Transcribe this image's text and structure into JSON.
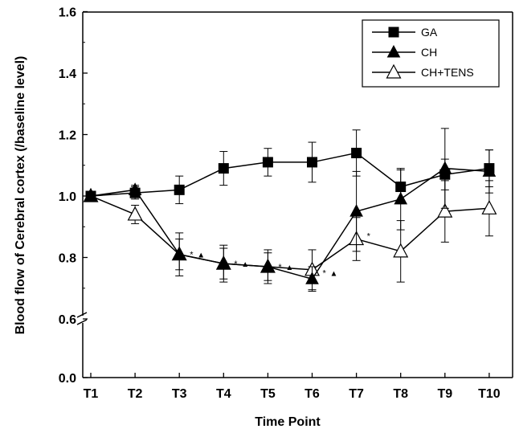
{
  "chart_data": {
    "type": "line",
    "title": "",
    "xlabel": "Time Point",
    "ylabel": "Blood flow of Cerebral cortex (/baseline level)",
    "categories": [
      "T1",
      "T2",
      "T3",
      "T4",
      "T5",
      "T6",
      "T7",
      "T8",
      "T9",
      "T10"
    ],
    "yticks": [
      "0.0",
      "0.6",
      "0.8",
      "1.0",
      "1.2",
      "1.4",
      "1.6"
    ],
    "y_axis_break": [
      0.0,
      0.6
    ],
    "ylim": [
      0.0,
      1.6
    ],
    "legend_position": "top-right",
    "grid": false,
    "series": [
      {
        "name": "GA",
        "marker": "filled-square",
        "values": [
          1.0,
          1.01,
          1.02,
          1.09,
          1.11,
          1.11,
          1.14,
          1.03,
          1.07,
          1.09
        ],
        "errors": [
          0.0,
          0.02,
          0.045,
          0.055,
          0.045,
          0.065,
          0.075,
          0.055,
          0.05,
          0.06
        ]
      },
      {
        "name": "CH",
        "marker": "filled-triangle",
        "values": [
          1.0,
          1.02,
          0.81,
          0.78,
          0.77,
          0.73,
          0.95,
          0.99,
          1.09,
          1.08
        ],
        "errors": [
          0.0,
          0.015,
          0.07,
          0.06,
          0.055,
          0.04,
          0.13,
          0.1,
          0.13,
          0.07
        ]
      },
      {
        "name": "CH+TENS",
        "marker": "open-triangle",
        "values": [
          1.0,
          0.94,
          0.81,
          0.78,
          0.77,
          0.76,
          0.86,
          0.82,
          0.95,
          0.96
        ],
        "errors": [
          0.0,
          0.03,
          0.05,
          0.05,
          0.045,
          0.065,
          0.07,
          0.1,
          0.1,
          0.09
        ]
      }
    ],
    "annotations": [
      {
        "x": "T3",
        "value": 0.81,
        "marks": [
          "*",
          "▲"
        ]
      },
      {
        "x": "T4",
        "value": 0.78,
        "marks": [
          "*",
          "▲"
        ]
      },
      {
        "x": "T5",
        "value": 0.77,
        "marks": [
          "*",
          "▲"
        ]
      },
      {
        "x": "T6",
        "value": 0.75,
        "marks": [
          "*",
          "▲"
        ]
      },
      {
        "x": "T7",
        "value": 0.87,
        "marks": [
          "*"
        ]
      }
    ]
  }
}
